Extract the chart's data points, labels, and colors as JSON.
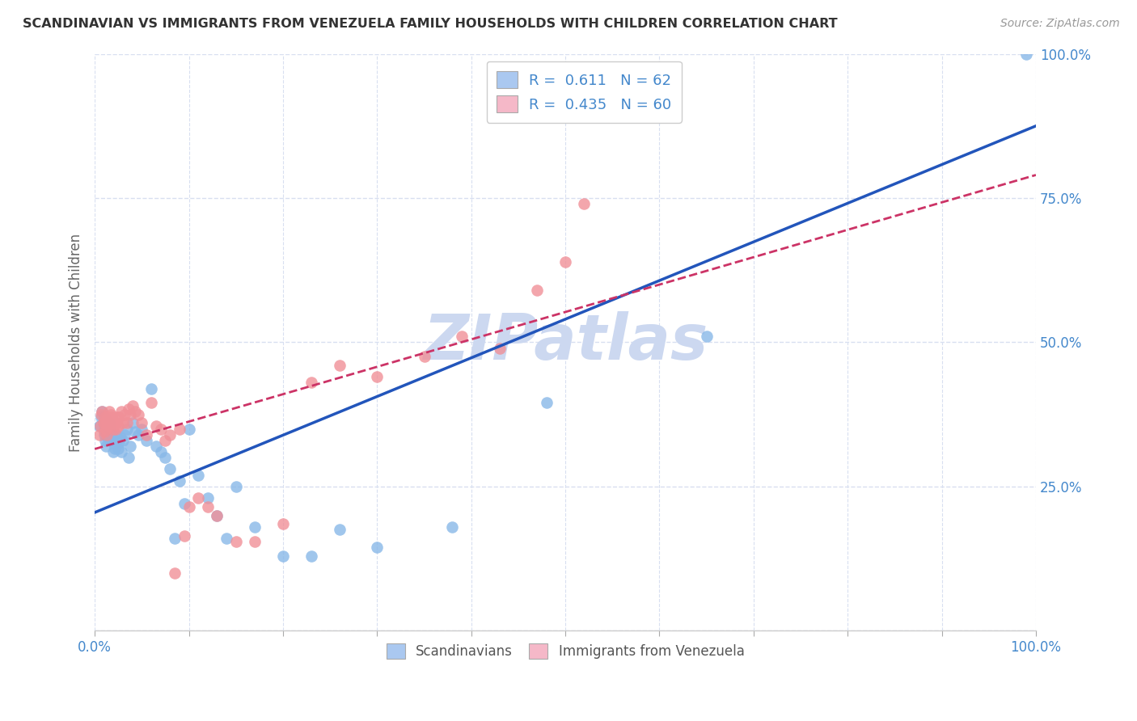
{
  "title": "SCANDINAVIAN VS IMMIGRANTS FROM VENEZUELA FAMILY HOUSEHOLDS WITH CHILDREN CORRELATION CHART",
  "source": "Source: ZipAtlas.com",
  "ylabel": "Family Households with Children",
  "xlim": [
    0,
    1
  ],
  "ylim": [
    0,
    1
  ],
  "x_ticks": [
    0.0,
    0.1,
    0.2,
    0.3,
    0.4,
    0.5,
    0.6,
    0.7,
    0.8,
    0.9,
    1.0
  ],
  "y_ticks": [
    0.0,
    0.25,
    0.5,
    0.75,
    1.0
  ],
  "x_tick_labels_show": [
    "0.0%",
    "",
    "",
    "",
    "",
    "",
    "",
    "",
    "",
    "",
    "100.0%"
  ],
  "y_tick_labels": [
    "",
    "25.0%",
    "50.0%",
    "75.0%",
    "100.0%"
  ],
  "legend1_r": "0.611",
  "legend1_n": "62",
  "legend2_r": "0.435",
  "legend2_n": "60",
  "legend1_color": "#aac8f0",
  "legend2_color": "#f5b8c8",
  "scatter1_color": "#88b8e8",
  "scatter2_color": "#f09098",
  "line1_color": "#2255bb",
  "line2_color": "#cc3366",
  "watermark": "ZIPatlas",
  "watermark_color": "#ccd8f0",
  "grid_color": "#d8dff0",
  "background_color": "#ffffff",
  "tick_color": "#4488cc",
  "scatter1_x": [
    0.005,
    0.007,
    0.008,
    0.009,
    0.01,
    0.01,
    0.01,
    0.01,
    0.011,
    0.012,
    0.012,
    0.013,
    0.014,
    0.015,
    0.015,
    0.016,
    0.016,
    0.017,
    0.018,
    0.019,
    0.02,
    0.02,
    0.021,
    0.022,
    0.023,
    0.025,
    0.026,
    0.027,
    0.028,
    0.03,
    0.032,
    0.034,
    0.036,
    0.038,
    0.04,
    0.043,
    0.046,
    0.05,
    0.055,
    0.06,
    0.065,
    0.07,
    0.075,
    0.08,
    0.085,
    0.09,
    0.095,
    0.1,
    0.11,
    0.12,
    0.13,
    0.14,
    0.15,
    0.17,
    0.2,
    0.23,
    0.26,
    0.3,
    0.38,
    0.48,
    0.65,
    0.99
  ],
  "scatter1_y": [
    0.355,
    0.37,
    0.38,
    0.36,
    0.34,
    0.35,
    0.36,
    0.37,
    0.33,
    0.32,
    0.345,
    0.355,
    0.335,
    0.35,
    0.36,
    0.34,
    0.355,
    0.345,
    0.335,
    0.33,
    0.31,
    0.325,
    0.315,
    0.33,
    0.34,
    0.315,
    0.325,
    0.335,
    0.31,
    0.33,
    0.34,
    0.35,
    0.3,
    0.32,
    0.36,
    0.345,
    0.34,
    0.35,
    0.33,
    0.42,
    0.32,
    0.31,
    0.3,
    0.28,
    0.16,
    0.26,
    0.22,
    0.35,
    0.27,
    0.23,
    0.2,
    0.16,
    0.25,
    0.18,
    0.13,
    0.13,
    0.175,
    0.145,
    0.18,
    0.395,
    0.51,
    1.0
  ],
  "scatter2_x": [
    0.005,
    0.006,
    0.007,
    0.008,
    0.009,
    0.01,
    0.01,
    0.011,
    0.012,
    0.013,
    0.013,
    0.014,
    0.015,
    0.015,
    0.016,
    0.017,
    0.018,
    0.019,
    0.02,
    0.021,
    0.022,
    0.023,
    0.024,
    0.025,
    0.026,
    0.028,
    0.03,
    0.032,
    0.034,
    0.036,
    0.038,
    0.04,
    0.043,
    0.046,
    0.05,
    0.055,
    0.06,
    0.065,
    0.07,
    0.075,
    0.08,
    0.085,
    0.09,
    0.095,
    0.1,
    0.11,
    0.12,
    0.13,
    0.15,
    0.17,
    0.2,
    0.23,
    0.26,
    0.3,
    0.35,
    0.39,
    0.43,
    0.47,
    0.5,
    0.52
  ],
  "scatter2_y": [
    0.34,
    0.355,
    0.375,
    0.38,
    0.36,
    0.345,
    0.36,
    0.37,
    0.35,
    0.34,
    0.36,
    0.37,
    0.355,
    0.38,
    0.365,
    0.375,
    0.37,
    0.36,
    0.35,
    0.36,
    0.35,
    0.36,
    0.37,
    0.355,
    0.37,
    0.38,
    0.36,
    0.375,
    0.36,
    0.385,
    0.375,
    0.39,
    0.38,
    0.375,
    0.36,
    0.34,
    0.395,
    0.355,
    0.35,
    0.33,
    0.34,
    0.1,
    0.35,
    0.165,
    0.215,
    0.23,
    0.215,
    0.2,
    0.155,
    0.155,
    0.185,
    0.43,
    0.46,
    0.44,
    0.475,
    0.51,
    0.49,
    0.59,
    0.64,
    0.74
  ],
  "line1_x0": 0.0,
  "line1_y0": 0.205,
  "line1_x1": 1.0,
  "line1_y1": 0.875,
  "line2_x0": 0.0,
  "line2_y0": 0.315,
  "line2_x1": 1.0,
  "line2_y1": 0.79
}
